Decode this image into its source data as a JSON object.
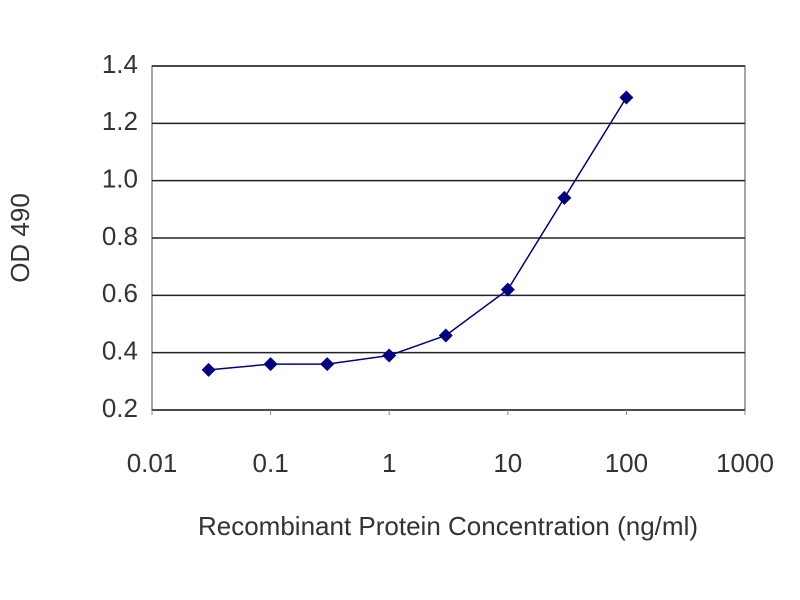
{
  "chart_data": {
    "type": "line",
    "x_label": "Recombinant Protein Concentration (ng/ml)",
    "y_label": "OD 490",
    "x": [
      0.03,
      0.1,
      0.3,
      1,
      3,
      10,
      30,
      100
    ],
    "values": [
      0.34,
      0.36,
      0.36,
      0.39,
      0.46,
      0.62,
      0.94,
      1.29
    ],
    "color": "#000080",
    "xscale": "log",
    "xlim": [
      0.01,
      1000
    ],
    "xticks": [
      0.01,
      0.1,
      1,
      10,
      100,
      1000
    ],
    "ylim": [
      0.2,
      1.4
    ],
    "yticks": [
      0.2,
      0.4,
      0.6,
      0.8,
      {
        "value": 1,
        "label": "1.0"
      },
      1.2,
      1.4
    ],
    "grid": true
  }
}
